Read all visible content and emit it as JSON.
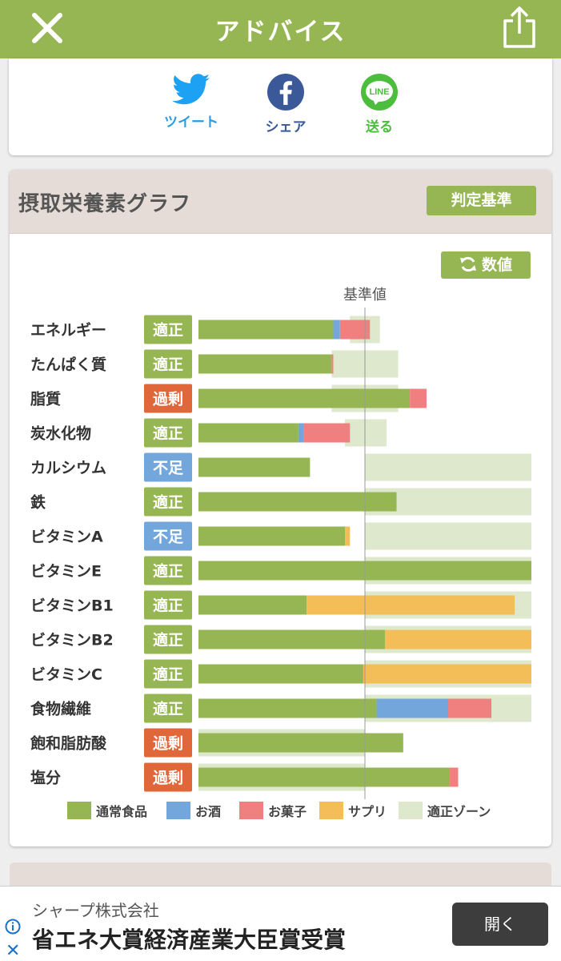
{
  "header": {
    "title": "アドバイス"
  },
  "share": {
    "tweet": "ツイート",
    "facebook": "シェア",
    "line": "送る",
    "line_icon_text": "LINE"
  },
  "graph": {
    "title": "摂取栄養素グラフ",
    "criteria_button": "判定基準",
    "values_button": "数値"
  },
  "chart_data": {
    "type": "bar",
    "orientation": "horizontal",
    "stacked": true,
    "reference_label": "基準値",
    "xlim": [
      0,
      200
    ],
    "reference_value": 100,
    "categories": [
      "エネルギー",
      "たんぱく質",
      "脂質",
      "炭水化物",
      "カルシウム",
      "鉄",
      "ビタミンA",
      "ビタミンE",
      "ビタミンB1",
      "ビタミンB2",
      "ビタミンC",
      "食物繊維",
      "飽和脂肪酸",
      "塩分"
    ],
    "statuses": [
      "適正",
      "適正",
      "過剰",
      "適正",
      "不足",
      "適正",
      "不足",
      "適正",
      "適正",
      "適正",
      "適正",
      "適正",
      "過剰",
      "過剰"
    ],
    "series": [
      {
        "name": "通常食品",
        "values": [
          81,
          80,
          127,
          60,
          67,
          119,
          88,
          200,
          65,
          112,
          99,
          107,
          123,
          151
        ]
      },
      {
        "name": "お酒",
        "values": [
          4,
          0,
          0,
          3,
          0,
          0,
          0,
          0,
          0,
          0,
          0,
          43,
          0,
          0
        ]
      },
      {
        "name": "お菓子",
        "values": [
          18,
          1,
          10,
          28,
          0,
          0,
          0,
          0,
          0,
          0,
          0,
          26,
          0,
          5
        ]
      },
      {
        "name": "サプリ",
        "values": [
          0,
          0,
          0,
          0,
          0,
          0,
          3,
          0,
          125,
          88,
          101,
          0,
          0,
          0
        ]
      }
    ],
    "zone_name": "適正ゾーン",
    "zones": [
      [
        91,
        109
      ],
      [
        80,
        120
      ],
      [
        80,
        120
      ],
      [
        88,
        113
      ],
      [
        100,
        200
      ],
      [
        100,
        200
      ],
      [
        100,
        200
      ],
      [
        100,
        200
      ],
      [
        100,
        200
      ],
      [
        100,
        200
      ],
      [
        100,
        200
      ],
      [
        100,
        200
      ],
      [
        0,
        100
      ],
      [
        0,
        100
      ]
    ],
    "status_colors": {
      "適正": "#96b553",
      "過剰": "#e0673a",
      "不足": "#73a7dc"
    },
    "series_colors": [
      "#96b553",
      "#73a7dc",
      "#f08080",
      "#f3bd57"
    ],
    "zone_color": "#dde8cd",
    "legend": [
      "通常食品",
      "お酒",
      "お菓子",
      "サプリ",
      "適正ゾーン"
    ],
    "legend_position": "bottom"
  },
  "ad": {
    "company": "シャープ株式会社",
    "headline": "省エネ大賞経済産業大臣賞受賞",
    "button": "開く",
    "close": "✕"
  }
}
